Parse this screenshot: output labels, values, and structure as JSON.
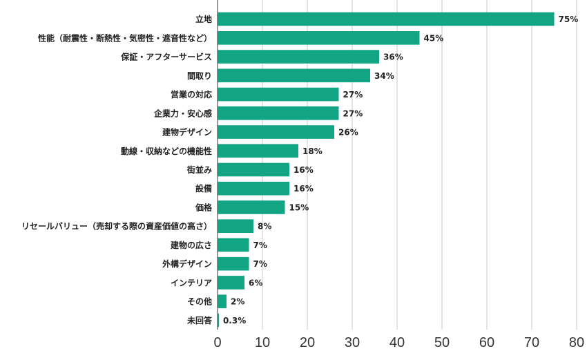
{
  "chart_data": {
    "type": "bar",
    "orientation": "horizontal",
    "categories": [
      "立地",
      "性能（耐震性・断熱性・気密性・遮音性など）",
      "保証・アフターサービス",
      "間取り",
      "営業の対応",
      "企業力・安心感",
      "建物デザイン",
      "動線・収納などの機能性",
      "街並み",
      "設備",
      "価格",
      "リセールバリュー（売却する際の資産価値の高さ）",
      "建物の広さ",
      "外構デザイン",
      "インテリア",
      "その他",
      "未回答"
    ],
    "values": [
      75,
      45,
      36,
      34,
      27,
      27,
      26,
      18,
      16,
      16,
      15,
      8,
      7,
      7,
      6,
      2,
      0.3
    ],
    "value_labels": [
      "75%",
      "45%",
      "36%",
      "34%",
      "27%",
      "27%",
      "26%",
      "18%",
      "16%",
      "16%",
      "15%",
      "8%",
      "7%",
      "7%",
      "6%",
      "2%",
      "0.3%"
    ],
    "xlim": [
      0,
      80
    ],
    "xticks": [
      0,
      10,
      20,
      30,
      40,
      50,
      60,
      70,
      80
    ],
    "xtick_labels": [
      "0",
      "10",
      "20",
      "30",
      "40",
      "50",
      "60",
      "70",
      "80"
    ],
    "bar_color": "#12a583",
    "grid": "vertical",
    "grid_color": "#c8c8c8",
    "axis_color": "#555555"
  }
}
